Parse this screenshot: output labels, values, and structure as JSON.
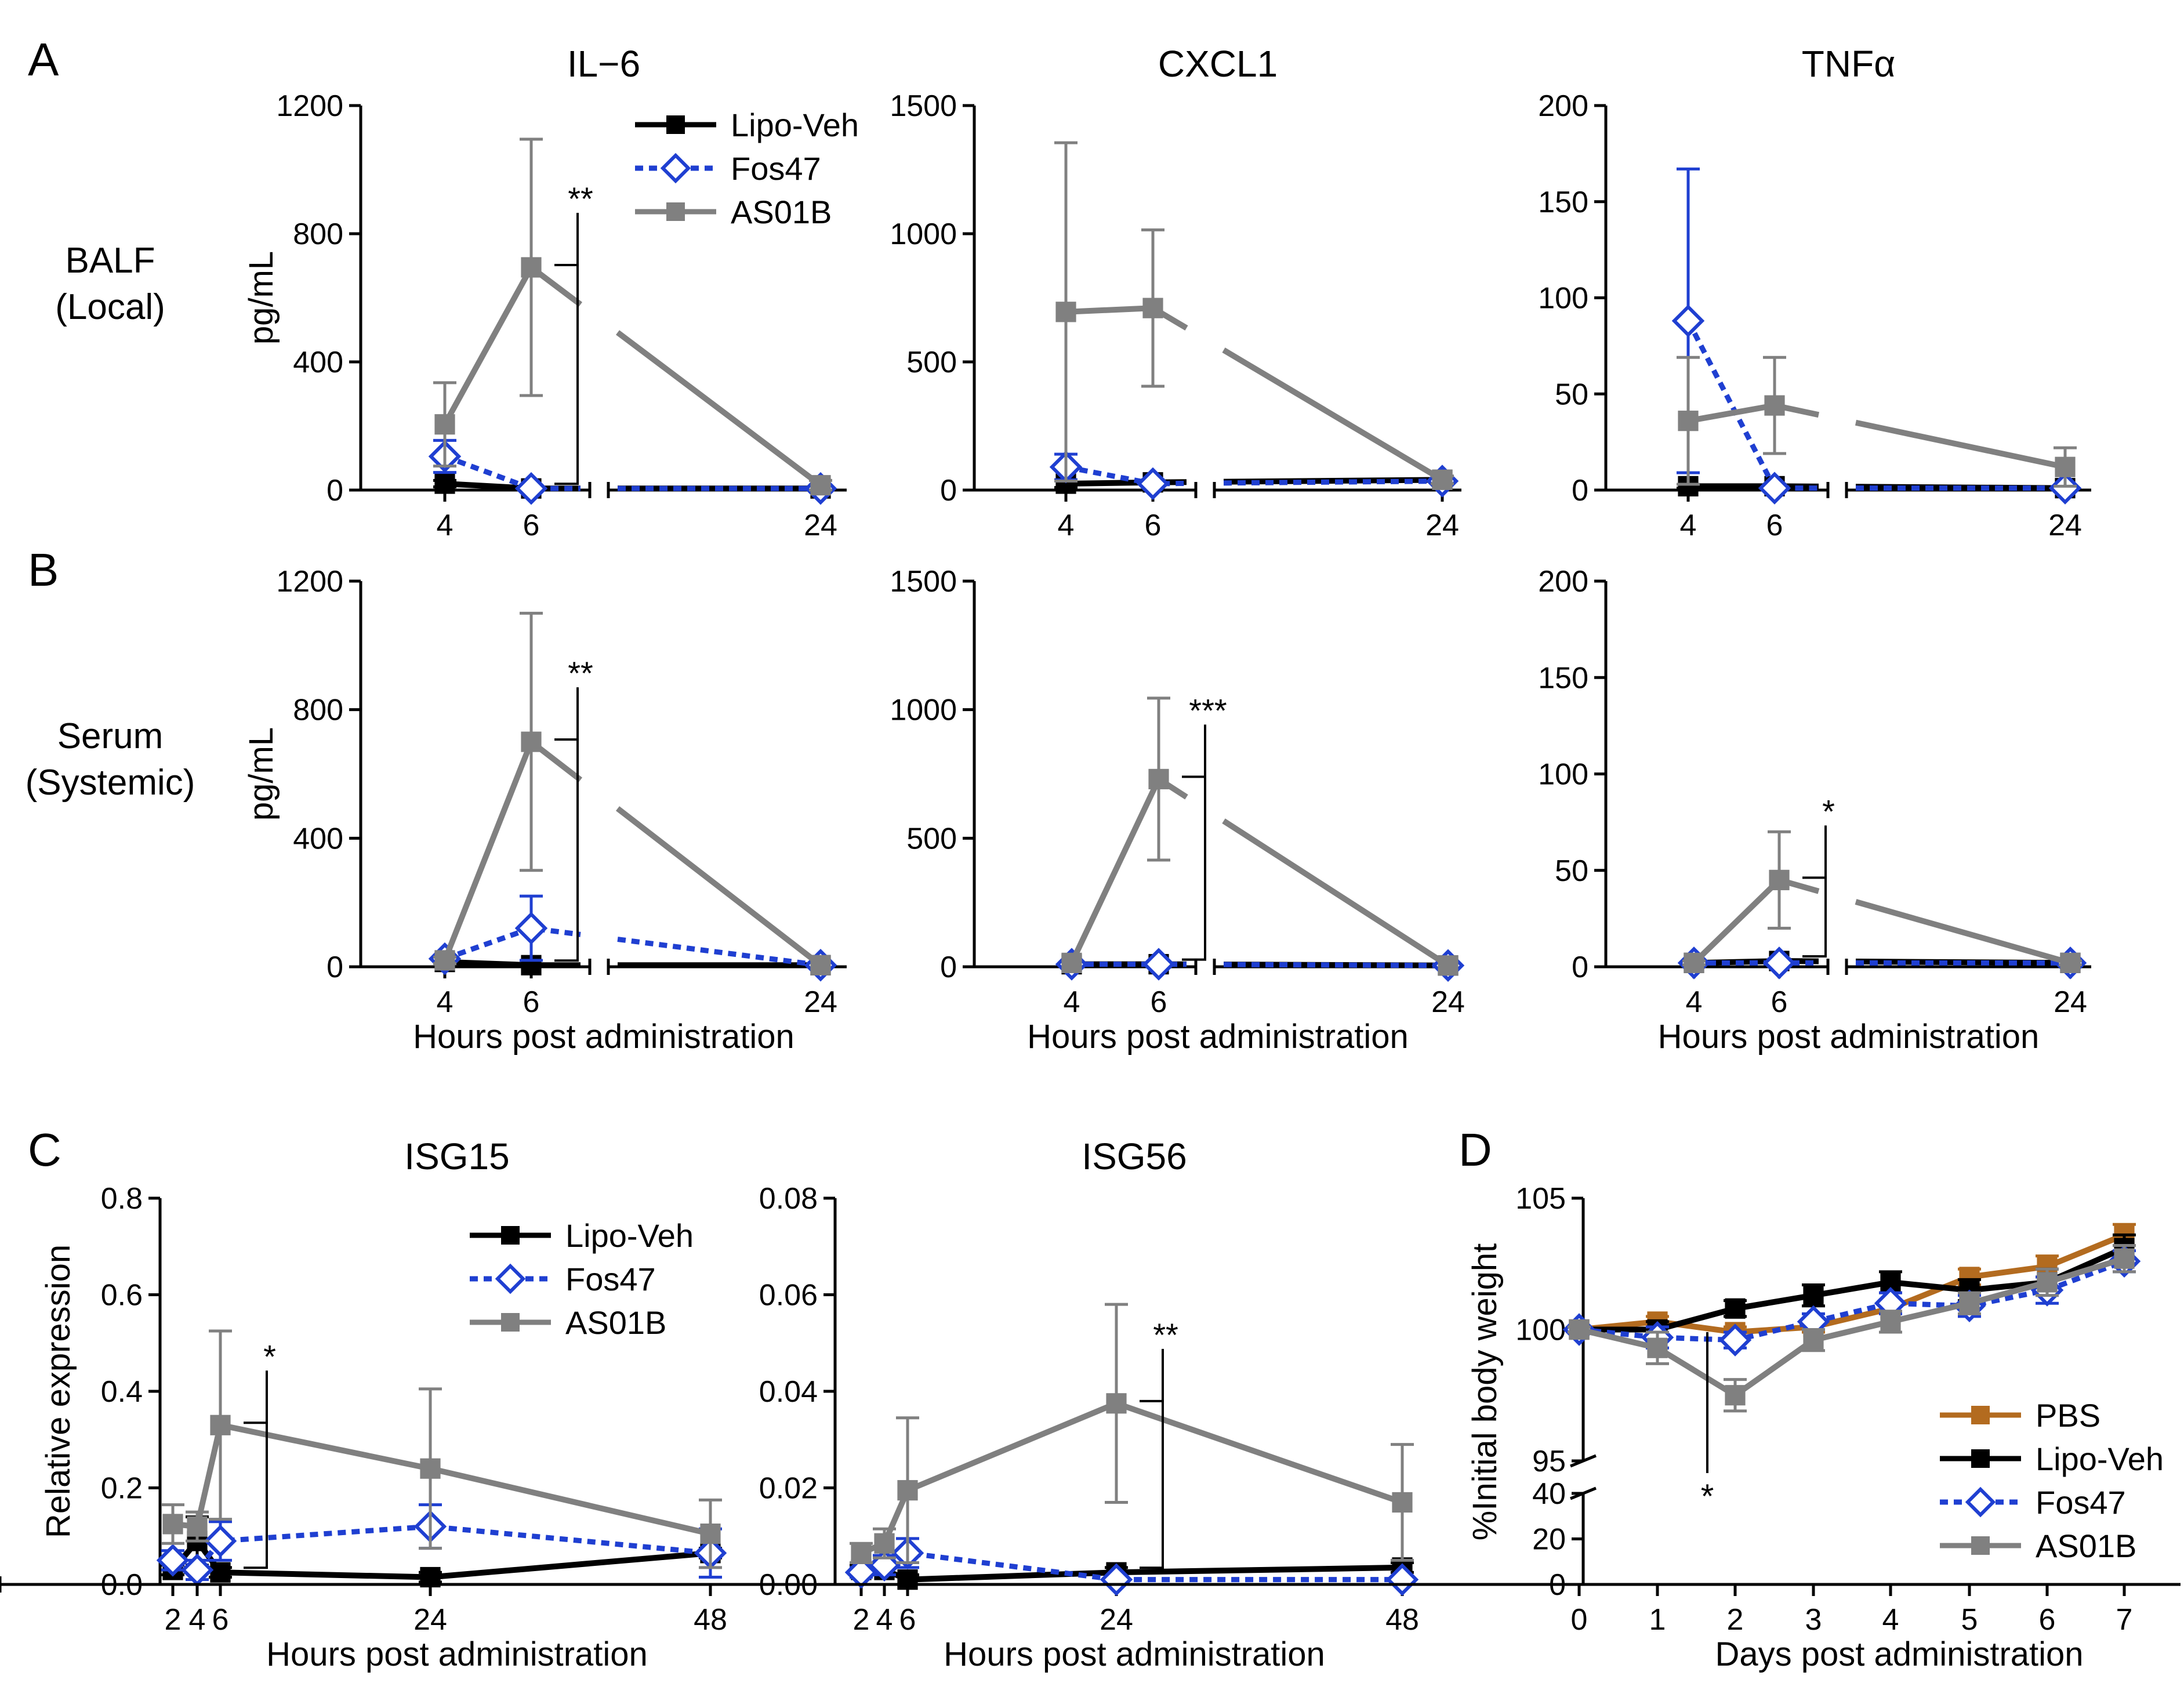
{
  "colors": {
    "lipo": "#000000",
    "fos": "#1f3fd1",
    "as01b": "#808080",
    "pbs": "#b36b1f"
  },
  "labels": {
    "panel_A": "A",
    "panel_B": "B",
    "panel_C": "C",
    "panel_D": "D",
    "row_A_1": "BALF",
    "row_A_2": "(Local)",
    "row_B_1": "Serum",
    "row_B_2": "(Systemic)"
  },
  "chart_data": [
    {
      "id": "A1",
      "type": "line",
      "title": "IL−6",
      "ylabel": "pg/mL",
      "xlabel": "",
      "xticks": [
        4,
        6,
        24
      ],
      "ylim": [
        0,
        1200
      ],
      "yticks": [
        0,
        400,
        800,
        1200
      ],
      "axis_break": true,
      "legend": {
        "position": "top-right",
        "entries": [
          "Lipo-Veh",
          "Fos47",
          "AS01B"
        ]
      },
      "series": [
        {
          "name": "Lipo-Veh",
          "x": [
            4,
            6,
            24
          ],
          "y": [
            20,
            5,
            5
          ],
          "err": [
            10,
            5,
            5
          ]
        },
        {
          "name": "Fos47",
          "x": [
            4,
            6,
            24
          ],
          "y": [
            105,
            5,
            5
          ],
          "err": [
            50,
            5,
            5
          ]
        },
        {
          "name": "AS01B",
          "x": [
            4,
            6,
            24
          ],
          "y": [
            205,
            695,
            15
          ],
          "err": [
            130,
            400,
            15
          ]
        }
      ],
      "annotations": [
        {
          "text": "**",
          "x": 6
        }
      ]
    },
    {
      "id": "A2",
      "type": "line",
      "title": "CXCL1",
      "ylabel": "",
      "xlabel": "",
      "xticks": [
        4,
        6,
        24
      ],
      "ylim": [
        0,
        1500
      ],
      "yticks": [
        0,
        500,
        1000,
        1500
      ],
      "axis_break": true,
      "series": [
        {
          "name": "Lipo-Veh",
          "x": [
            4,
            6,
            24
          ],
          "y": [
            25,
            30,
            40
          ],
          "err": [
            15,
            10,
            10
          ]
        },
        {
          "name": "Fos47",
          "x": [
            4,
            6,
            24
          ],
          "y": [
            90,
            25,
            35
          ],
          "err": [
            50,
            10,
            10
          ]
        },
        {
          "name": "AS01B",
          "x": [
            4,
            6,
            24
          ],
          "y": [
            695,
            710,
            40
          ],
          "err": [
            660,
            305,
            15
          ]
        }
      ]
    },
    {
      "id": "A3",
      "type": "line",
      "title": "TNFα",
      "ylabel": "",
      "xlabel": "",
      "xticks": [
        4,
        6,
        24
      ],
      "ylim": [
        0,
        200
      ],
      "yticks": [
        0,
        50,
        100,
        150,
        200
      ],
      "axis_break": true,
      "series": [
        {
          "name": "Lipo-Veh",
          "x": [
            4,
            6,
            24
          ],
          "y": [
            2,
            2,
            1
          ],
          "err": [
            1,
            1,
            1
          ]
        },
        {
          "name": "Fos47",
          "x": [
            4,
            6,
            24
          ],
          "y": [
            88,
            1,
            1
          ],
          "err": [
            79,
            1,
            1
          ]
        },
        {
          "name": "AS01B",
          "x": [
            4,
            6,
            24
          ],
          "y": [
            36,
            44,
            12
          ],
          "err": [
            33,
            25,
            10
          ]
        }
      ]
    },
    {
      "id": "B1",
      "type": "line",
      "title": "",
      "ylabel": "pg/mL",
      "xlabel": "Hours post administration",
      "xticks": [
        4,
        6,
        24
      ],
      "ylim": [
        0,
        1200
      ],
      "yticks": [
        0,
        400,
        800,
        1200
      ],
      "axis_break": true,
      "series": [
        {
          "name": "Lipo-Veh",
          "x": [
            4,
            6,
            24
          ],
          "y": [
            15,
            5,
            5
          ],
          "err": [
            5,
            5,
            5
          ]
        },
        {
          "name": "Fos47",
          "x": [
            4,
            6,
            24
          ],
          "y": [
            25,
            120,
            5
          ],
          "err": [
            10,
            100,
            5
          ]
        },
        {
          "name": "AS01B",
          "x": [
            4,
            6,
            24
          ],
          "y": [
            20,
            700,
            5
          ],
          "err": [
            10,
            400,
            5
          ]
        }
      ],
      "annotations": [
        {
          "text": "**",
          "x": 6
        }
      ]
    },
    {
      "id": "B2",
      "type": "line",
      "title": "",
      "ylabel": "",
      "xlabel": "Hours post administration",
      "xticks": [
        4,
        6,
        24
      ],
      "ylim": [
        0,
        1500
      ],
      "yticks": [
        0,
        500,
        1000,
        1500
      ],
      "axis_break": true,
      "series": [
        {
          "name": "Lipo-Veh",
          "x": [
            4,
            6,
            24
          ],
          "y": [
            10,
            10,
            5
          ],
          "err": [
            5,
            5,
            5
          ]
        },
        {
          "name": "Fos47",
          "x": [
            4,
            6,
            24
          ],
          "y": [
            10,
            10,
            5
          ],
          "err": [
            5,
            5,
            5
          ]
        },
        {
          "name": "AS01B",
          "x": [
            4,
            6,
            24
          ],
          "y": [
            15,
            730,
            5
          ],
          "err": [
            5,
            315,
            5
          ]
        }
      ],
      "annotations": [
        {
          "text": "***",
          "x": 6
        }
      ]
    },
    {
      "id": "B3",
      "type": "line",
      "title": "",
      "ylabel": "",
      "xlabel": "Hours post administration",
      "xticks": [
        4,
        6,
        24
      ],
      "ylim": [
        0,
        200
      ],
      "yticks": [
        0,
        50,
        100,
        150,
        200
      ],
      "axis_break": true,
      "series": [
        {
          "name": "Lipo-Veh",
          "x": [
            4,
            6,
            24
          ],
          "y": [
            2,
            3,
            2
          ],
          "err": [
            1,
            1,
            1
          ]
        },
        {
          "name": "Fos47",
          "x": [
            4,
            6,
            24
          ],
          "y": [
            2,
            2,
            2
          ],
          "err": [
            1,
            1,
            1
          ]
        },
        {
          "name": "AS01B",
          "x": [
            4,
            6,
            24
          ],
          "y": [
            2,
            45,
            2
          ],
          "err": [
            1,
            25,
            1
          ]
        }
      ],
      "annotations": [
        {
          "text": "*",
          "x": 6
        }
      ]
    },
    {
      "id": "C1",
      "type": "line",
      "title": "ISG15",
      "ylabel": "Relative expression",
      "xlabel": "Hours post administration",
      "xticks": [
        2,
        4,
        6,
        24,
        48
      ],
      "ylim": [
        0,
        0.8
      ],
      "yticks": [
        0.0,
        0.2,
        0.4,
        0.6,
        0.8
      ],
      "ytick_labels": [
        "0.0",
        "0.2",
        "0.4",
        "0.6",
        "0.8"
      ],
      "legend": {
        "position": "top-right",
        "entries": [
          "Lipo-Veh",
          "Fos47",
          "AS01B"
        ]
      },
      "series": [
        {
          "name": "Lipo-Veh",
          "x": [
            2,
            4,
            6,
            24,
            48
          ],
          "y": [
            0.03,
            0.09,
            0.025,
            0.015,
            0.065
          ],
          "err": [
            0.01,
            0.05,
            0.01,
            0.01,
            0.01
          ]
        },
        {
          "name": "Fos47",
          "x": [
            2,
            4,
            6,
            24,
            48
          ],
          "y": [
            0.05,
            0.03,
            0.09,
            0.12,
            0.065
          ],
          "err": [
            0.02,
            0.02,
            0.04,
            0.045,
            0.05
          ]
        },
        {
          "name": "AS01B",
          "x": [
            2,
            4,
            6,
            24,
            48
          ],
          "y": [
            0.125,
            0.12,
            0.33,
            0.24,
            0.105
          ],
          "err": [
            0.04,
            0.03,
            0.195,
            0.165,
            0.07
          ]
        }
      ],
      "annotations": [
        {
          "text": "*",
          "x": 6
        }
      ]
    },
    {
      "id": "C2",
      "type": "line",
      "title": "ISG56",
      "ylabel": "",
      "xlabel": "Hours post administration",
      "xticks": [
        2,
        4,
        6,
        24,
        48
      ],
      "ylim": [
        0,
        0.08
      ],
      "yticks": [
        0.0,
        0.02,
        0.04,
        0.06,
        0.08
      ],
      "ytick_labels": [
        "0.00",
        "0.02",
        "0.04",
        "0.06",
        "0.08"
      ],
      "series": [
        {
          "name": "Lipo-Veh",
          "x": [
            2,
            4,
            6,
            24,
            48
          ],
          "y": [
            0.003,
            0.003,
            0.001,
            0.0025,
            0.0035
          ],
          "err": [
            0.001,
            0.001,
            0.001,
            0.001,
            0.001
          ]
        },
        {
          "name": "Fos47",
          "x": [
            2,
            4,
            6,
            24,
            48
          ],
          "y": [
            0.0025,
            0.004,
            0.0065,
            0.001,
            0.001
          ],
          "err": [
            0.001,
            0.002,
            0.003,
            0.0005,
            0.0005
          ]
        },
        {
          "name": "AS01B",
          "x": [
            2,
            4,
            6,
            24,
            48
          ],
          "y": [
            0.0065,
            0.0085,
            0.0195,
            0.0375,
            0.017
          ],
          "err": [
            0.002,
            0.003,
            0.015,
            0.0205,
            0.012
          ]
        }
      ],
      "annotations": [
        {
          "text": "**",
          "x": 24
        }
      ]
    },
    {
      "id": "D",
      "type": "line",
      "title": "",
      "ylabel": "%Initial body weight",
      "xlabel": "Days post administration",
      "xticks": [
        0,
        1,
        2,
        3,
        4,
        5,
        6,
        7
      ],
      "ylim": [
        0,
        105
      ],
      "yticks": [
        0,
        20,
        40,
        95,
        100,
        105
      ],
      "axis_break": true,
      "legend": {
        "position": "bottom-right",
        "entries": [
          "PBS",
          "Lipo-Veh",
          "Fos47",
          "AS01B"
        ]
      },
      "series": [
        {
          "name": "PBS",
          "x": [
            0,
            1,
            2,
            3,
            4,
            5,
            6,
            7
          ],
          "y": [
            100,
            100.3,
            99.9,
            100.1,
            100.8,
            102,
            102.4,
            103.6
          ],
          "err": [
            0.1,
            0.2,
            0.2,
            0.2,
            0.2,
            0.3,
            0.4,
            0.4
          ]
        },
        {
          "name": "Lipo-Veh",
          "x": [
            0,
            1,
            2,
            3,
            4,
            5,
            6,
            7
          ],
          "y": [
            100,
            100,
            100.8,
            101.3,
            101.8,
            101.5,
            101.8,
            103.1
          ],
          "err": [
            0.1,
            0.3,
            0.3,
            0.4,
            0.4,
            0.4,
            0.5,
            0.5
          ]
        },
        {
          "name": "Fos47",
          "x": [
            0,
            1,
            2,
            3,
            4,
            5,
            6,
            7
          ],
          "y": [
            100,
            99.7,
            99.6,
            100.3,
            101,
            100.9,
            101.5,
            102.6
          ],
          "err": [
            0.1,
            0.4,
            0.3,
            0.3,
            0.4,
            0.4,
            0.5,
            0.4
          ]
        },
        {
          "name": "AS01B",
          "x": [
            0,
            1,
            2,
            3,
            4,
            5,
            6,
            7
          ],
          "y": [
            100,
            99.3,
            97.5,
            99.6,
            100.3,
            101,
            101.8,
            102.7
          ],
          "err": [
            0.1,
            0.6,
            0.6,
            0.4,
            0.4,
            0.4,
            0.5,
            0.5
          ]
        }
      ],
      "annotations": [
        {
          "text": "*",
          "x": 2
        }
      ]
    }
  ]
}
